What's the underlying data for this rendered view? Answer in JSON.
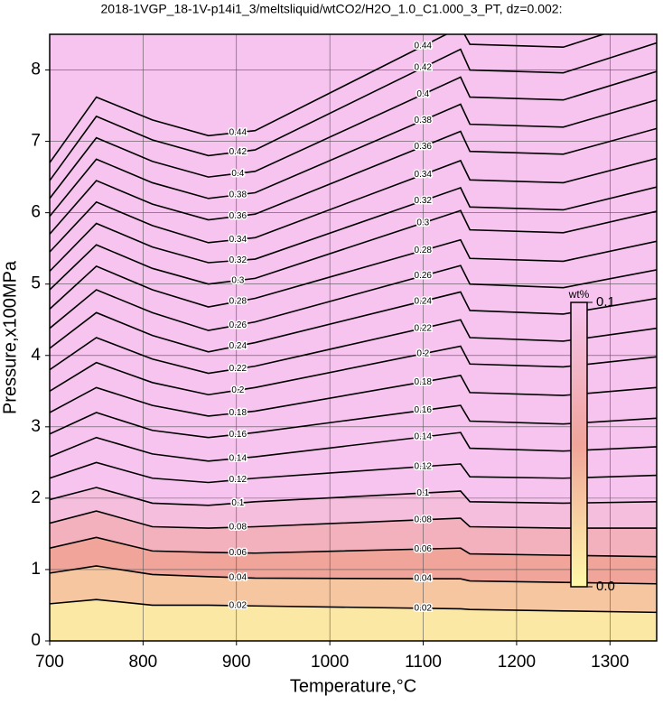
{
  "chart_data": {
    "type": "contour",
    "title": "2018-1VGP_18-1V-p14i1_3/meltsliquid/wtCO2/H2O_1.0_C1.000_3_PT, dz=0.002:",
    "xlabel": "Temperature,°C",
    "ylabel": "Pressure,x100MPa",
    "xlim": [
      700,
      1350
    ],
    "ylim": [
      0,
      8.5
    ],
    "xticks": [
      700,
      800,
      900,
      1000,
      1100,
      1200,
      1300
    ],
    "yticks": [
      0,
      1,
      2,
      3,
      4,
      5,
      6,
      7,
      8
    ],
    "grid": true,
    "x": [
      700,
      750,
      810,
      870,
      920,
      1140,
      1150,
      1250,
      1350
    ],
    "contours": [
      {
        "level": 0.02,
        "values": [
          0.52,
          0.58,
          0.5,
          0.5,
          0.49,
          0.45,
          0.44,
          0.42,
          0.4
        ]
      },
      {
        "level": 0.04,
        "values": [
          0.95,
          1.05,
          0.93,
          0.9,
          0.88,
          0.87,
          0.84,
          0.82,
          0.8
        ]
      },
      {
        "level": 0.06,
        "values": [
          1.3,
          1.45,
          1.26,
          1.24,
          1.23,
          1.3,
          1.22,
          1.2,
          1.18
        ]
      },
      {
        "level": 0.08,
        "values": [
          1.65,
          1.82,
          1.6,
          1.58,
          1.6,
          1.72,
          1.6,
          1.58,
          1.58
        ]
      },
      {
        "level": 0.1,
        "values": [
          1.98,
          2.15,
          1.93,
          1.9,
          1.95,
          2.1,
          1.95,
          1.93,
          1.95
        ]
      },
      {
        "level": 0.12,
        "values": [
          2.28,
          2.5,
          2.28,
          2.22,
          2.28,
          2.48,
          2.3,
          2.28,
          2.32
        ]
      },
      {
        "level": 0.14,
        "values": [
          2.58,
          2.85,
          2.62,
          2.52,
          2.58,
          2.92,
          2.7,
          2.66,
          2.72
        ]
      },
      {
        "level": 0.16,
        "values": [
          2.9,
          3.2,
          2.95,
          2.85,
          2.92,
          3.3,
          3.08,
          3.04,
          3.12
        ]
      },
      {
        "level": 0.18,
        "values": [
          3.2,
          3.55,
          3.3,
          3.15,
          3.22,
          3.72,
          3.48,
          3.44,
          3.55
        ]
      },
      {
        "level": 0.2,
        "values": [
          3.5,
          3.9,
          3.62,
          3.45,
          3.55,
          4.13,
          3.88,
          3.84,
          3.98
        ]
      },
      {
        "level": 0.22,
        "values": [
          3.8,
          4.25,
          3.95,
          3.75,
          3.85,
          4.5,
          4.25,
          4.2,
          4.38
        ]
      },
      {
        "level": 0.24,
        "values": [
          4.1,
          4.6,
          4.28,
          4.05,
          4.18,
          4.89,
          4.63,
          4.58,
          4.8
        ]
      },
      {
        "level": 0.26,
        "values": [
          4.38,
          4.92,
          4.6,
          4.35,
          4.47,
          5.26,
          5.0,
          4.95,
          5.2
        ]
      },
      {
        "level": 0.28,
        "values": [
          4.65,
          5.25,
          4.92,
          4.68,
          4.8,
          5.62,
          5.36,
          5.32,
          5.6
        ]
      },
      {
        "level": 0.3,
        "values": [
          4.92,
          5.55,
          5.22,
          5.0,
          5.08,
          6.03,
          5.76,
          5.72,
          6.02
        ]
      },
      {
        "level": 0.32,
        "values": [
          5.18,
          5.85,
          5.52,
          5.3,
          5.35,
          6.35,
          6.08,
          6.04,
          6.36
        ]
      },
      {
        "level": 0.34,
        "values": [
          5.45,
          6.15,
          5.82,
          5.58,
          5.65,
          6.73,
          6.46,
          6.42,
          6.76
        ]
      },
      {
        "level": 0.36,
        "values": [
          5.7,
          6.45,
          6.12,
          5.9,
          5.98,
          7.14,
          6.86,
          6.82,
          7.18
        ]
      },
      {
        "level": 0.38,
        "values": [
          5.95,
          6.75,
          6.42,
          6.2,
          6.28,
          7.52,
          7.24,
          7.2,
          7.58
        ]
      },
      {
        "level": 0.4,
        "values": [
          6.2,
          7.05,
          6.72,
          6.5,
          6.58,
          7.9,
          7.62,
          7.58,
          7.98
        ]
      },
      {
        "level": 0.42,
        "values": [
          6.45,
          7.35,
          7.02,
          6.8,
          6.88,
          8.29,
          8.0,
          7.96,
          8.38
        ]
      },
      {
        "level": 0.44,
        "values": [
          6.7,
          7.62,
          7.3,
          7.08,
          7.15,
          8.6,
          8.36,
          8.32,
          8.74
        ]
      }
    ],
    "colormap": [
      {
        "value": 0,
        "color": "#fff9a8"
      },
      {
        "value": 0.05,
        "color": "#f0a49a"
      },
      {
        "value": 0.1,
        "color": "#f6c4ee"
      }
    ],
    "colorbar": {
      "label": "wt%",
      "lim": [
        0,
        0.1
      ],
      "ticks": [
        {
          "value": 0,
          "label": "0.0"
        },
        0.1
      ]
    }
  }
}
